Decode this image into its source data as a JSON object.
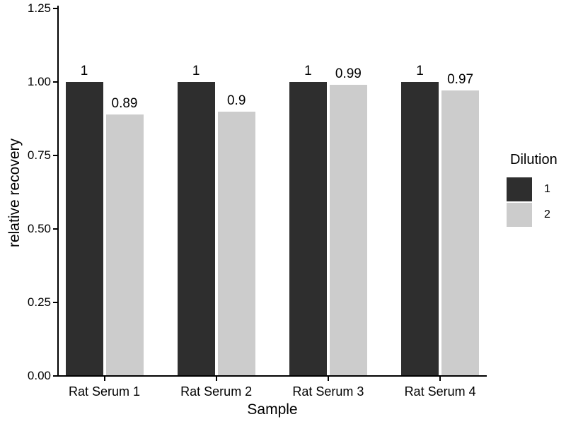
{
  "chart_data": {
    "type": "bar",
    "title": "",
    "xlabel": "Sample",
    "ylabel": "relative recovery",
    "categories": [
      "Rat Serum 1",
      "Rat Serum 2",
      "Rat Serum 3",
      "Rat Serum 4"
    ],
    "series": [
      {
        "name": "1",
        "color": "#2e2e2e",
        "values": [
          1,
          1,
          1,
          1
        ],
        "labels": [
          "1",
          "1",
          "1",
          "1"
        ]
      },
      {
        "name": "2",
        "color": "#cccccc",
        "values": [
          0.89,
          0.9,
          0.99,
          0.97
        ],
        "labels": [
          "0.89",
          "0.9",
          "0.99",
          "0.97"
        ]
      }
    ],
    "ylim": [
      0,
      1.25
    ],
    "yticks": [
      {
        "value": 0,
        "label": "0.00"
      },
      {
        "value": 0.25,
        "label": "0.25"
      },
      {
        "value": 0.5,
        "label": "0.50"
      },
      {
        "value": 0.75,
        "label": "0.75"
      },
      {
        "value": 1.0,
        "label": "1.00"
      },
      {
        "value": 1.25,
        "label": "1.25"
      }
    ],
    "legend": {
      "title": "Dilution",
      "position": "right"
    },
    "grid": false,
    "background": "#ffffff",
    "text_color": "#000000",
    "axis_color": "#000000"
  }
}
